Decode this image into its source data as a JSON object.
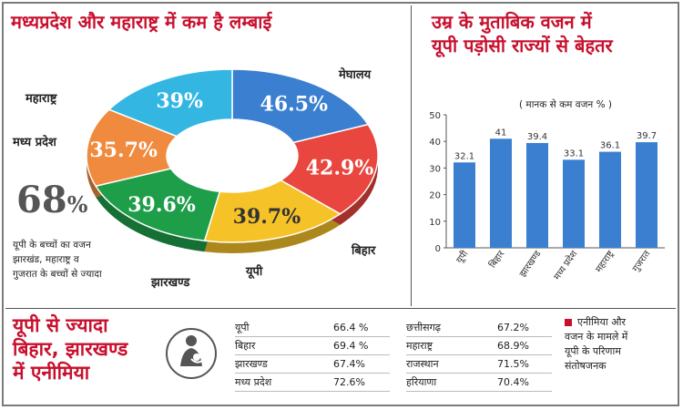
{
  "left_title": "मध्यप्रदेश और महाराष्ट्र में कम है लम्बाई",
  "right_title_line1": "उम्र के मुताबिक वजन में",
  "right_title_line2": "यूपी पड़ोसी राज्यों से बेहतर",
  "bar_subtitle": "( मानक से कम वजन % )",
  "callout_number": "68",
  "callout_pct": "%",
  "callout_text_1": "यूपी के बच्चों का वजन",
  "callout_text_2": "झारखंड, महाराष्ट्र व",
  "callout_text_3": "गुजरात के बच्चों से ज्यादा",
  "bottom_title_1": "यूपी से ज्यादा",
  "bottom_title_2": "बिहार, झारखण्ड",
  "bottom_title_3": "में एनीमिया",
  "note_text_1": "एनीमिया और",
  "note_text_2": "वजन के मामले में",
  "note_text_3": "यूपी के परिणाम",
  "note_text_4": "संतोषजनक",
  "colors": {
    "accent_red": "#c8102e",
    "bar": "#3b7fd0"
  },
  "chart_data": [
    {
      "type": "pie",
      "title": "मध्यप्रदेश और महाराष्ट्र में कम है लम्बाई",
      "categories": [
        "मेघालय",
        "बिहार",
        "यूपी",
        "झारखण्ड",
        "मध्य प्रदेश",
        "महाराष्ट्र"
      ],
      "values": [
        46.5,
        42.9,
        39.7,
        39.6,
        35.7,
        39
      ],
      "labels": [
        "46.5%",
        "42.9%",
        "39.7%",
        "39.6%",
        "35.7%",
        "39%"
      ],
      "colors": [
        "#3b7fd0",
        "#e8463f",
        "#f5c228",
        "#1f9e4a",
        "#f08a3e",
        "#33b7e2"
      ]
    },
    {
      "type": "bar",
      "title": "उम्र के मुताबिक वजन में यूपी पड़ोसी राज्यों से बेहतर",
      "subtitle": "( मानक से कम वजन % )",
      "categories": [
        "यूपी",
        "बिहार",
        "झारखण्ड",
        "मध्य प्रदेश",
        "महाराष्ट्र",
        "गुजरात"
      ],
      "values": [
        32.1,
        41,
        39.4,
        33.1,
        36.1,
        39.7
      ],
      "value_labels": [
        "32.1",
        "41",
        "39.4",
        "33.1",
        "36.1",
        "39.7"
      ],
      "ylim": [
        0,
        50
      ],
      "yticks": [
        "0",
        "10",
        "20",
        "30",
        "40",
        "50"
      ],
      "grid": false
    },
    {
      "type": "table",
      "title": "यूपी से ज्यादा बिहार, झारखण्ड में एनीमिया",
      "rows_left": [
        {
          "name": "यूपी",
          "value": "66.4 %"
        },
        {
          "name": "बिहार",
          "value": "69.4 %"
        },
        {
          "name": "झारखण्ड",
          "value": "67.4%"
        },
        {
          "name": "मध्य प्रदेश",
          "value": "72.6%"
        }
      ],
      "rows_right": [
        {
          "name": "छत्तीसगढ़",
          "value": "67.2%"
        },
        {
          "name": "महाराष्ट्र",
          "value": "68.9%"
        },
        {
          "name": "राजस्थान",
          "value": "71.5%"
        },
        {
          "name": "हरियाणा",
          "value": "70.4%"
        }
      ]
    }
  ]
}
